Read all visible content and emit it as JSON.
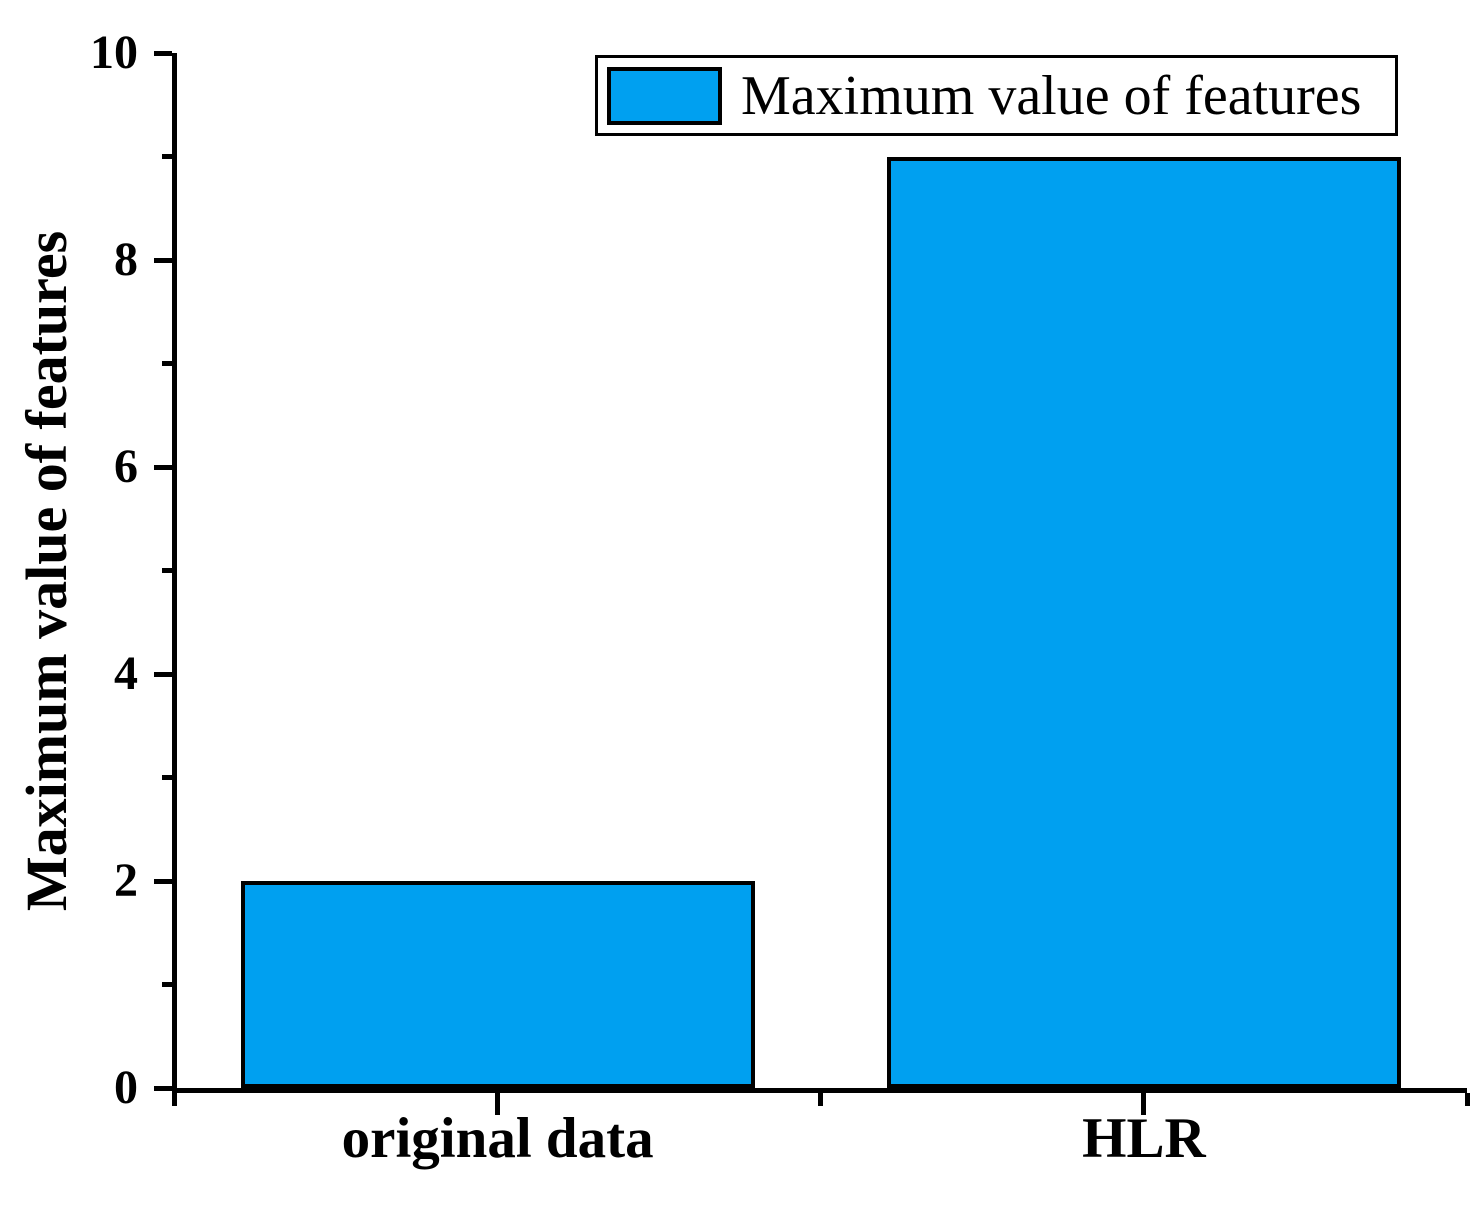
{
  "chart_data": {
    "type": "bar",
    "title": "",
    "categories": [
      "original data",
      "HLR"
    ],
    "values": [
      2,
      9
    ],
    "series_name": "Maximum value of features",
    "xlabel": "",
    "ylabel": "Maximum value of features",
    "ylim": [
      0,
      10
    ],
    "yticks_major": [
      0,
      2,
      4,
      6,
      8,
      10
    ],
    "yticks_minor": [
      1,
      3,
      5,
      7,
      9
    ],
    "xticks_major_at_category_centers": true,
    "xticks_minor_at_category_boundaries": [
      0,
      1,
      2
    ],
    "bar_width_fraction": 0.795,
    "grid": false,
    "legend": {
      "label": "Maximum value of features",
      "position": "top-right"
    },
    "colors": {
      "bar_fill": "#00A0F0",
      "bar_border": "#000000",
      "axis": "#000000",
      "background": "#FFFFFF"
    }
  }
}
